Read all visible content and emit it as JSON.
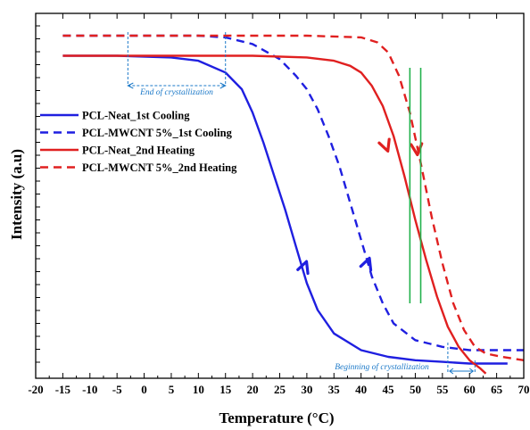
{
  "chart_data": {
    "type": "line",
    "title": "",
    "xlabel": "Temperature (°C)",
    "ylabel": "Intensity (a.u)",
    "xlim": [
      -20,
      70
    ],
    "ylim": [
      0,
      1
    ],
    "x_ticks": [
      "-20",
      "-15",
      "-10",
      "-5",
      "0",
      "5",
      "10",
      "15",
      "20",
      "25",
      "30",
      "35",
      "40",
      "45",
      "50",
      "55",
      "60",
      "65",
      "70"
    ],
    "y_tick_labels_shown": false,
    "grid": false,
    "legend_position": "center-left",
    "series": [
      {
        "name": "PCL-Neat_1st Cooling",
        "color": "#1f1fe0",
        "dash": "solid",
        "x": [
          -15,
          -5,
          5,
          10,
          15,
          18,
          20,
          22,
          24,
          26,
          28,
          30,
          32,
          35,
          40,
          45,
          50,
          55,
          60,
          65,
          67
        ],
        "y": [
          0.94,
          0.94,
          0.935,
          0.925,
          0.89,
          0.84,
          0.77,
          0.68,
          0.58,
          0.48,
          0.37,
          0.26,
          0.18,
          0.11,
          0.06,
          0.04,
          0.03,
          0.025,
          0.02,
          0.02,
          0.02
        ]
      },
      {
        "name": "PCL-MWCNT 5%_1st Cooling",
        "color": "#1f1fe0",
        "dash": "dashed",
        "x": [
          -15,
          10,
          15,
          20,
          25,
          28,
          30,
          32,
          34,
          36,
          38,
          40,
          42,
          44,
          46,
          50,
          55,
          60,
          70
        ],
        "y": [
          1.0,
          1.0,
          0.995,
          0.975,
          0.93,
          0.88,
          0.84,
          0.78,
          0.7,
          0.61,
          0.5,
          0.39,
          0.28,
          0.2,
          0.14,
          0.09,
          0.07,
          0.06,
          0.06
        ]
      },
      {
        "name": "PCL-Neat_2nd Heating",
        "color": "#e02020",
        "dash": "solid",
        "x": [
          -15,
          20,
          30,
          35,
          38,
          40,
          42,
          44,
          46,
          48,
          50,
          52,
          54,
          56,
          58,
          60,
          62,
          63
        ],
        "y": [
          0.94,
          0.94,
          0.935,
          0.925,
          0.91,
          0.89,
          0.85,
          0.79,
          0.7,
          0.58,
          0.45,
          0.33,
          0.22,
          0.13,
          0.07,
          0.03,
          0.005,
          -0.01
        ]
      },
      {
        "name": "PCL-MWCNT 5%_2nd Heating",
        "color": "#e02020",
        "dash": "dashed",
        "x": [
          -15,
          30,
          40,
          43,
          45,
          47,
          49,
          51,
          53,
          55,
          57,
          59,
          61,
          63,
          66,
          70
        ],
        "y": [
          1.0,
          1.0,
          0.995,
          0.98,
          0.95,
          0.88,
          0.77,
          0.62,
          0.46,
          0.32,
          0.2,
          0.12,
          0.07,
          0.05,
          0.04,
          0.03
        ]
      }
    ],
    "annotations": [
      {
        "text": "End of crystallization",
        "color": "#1a78c8"
      },
      {
        "text": "Beginning of crystallization",
        "color": "#1a78c8"
      }
    ]
  }
}
